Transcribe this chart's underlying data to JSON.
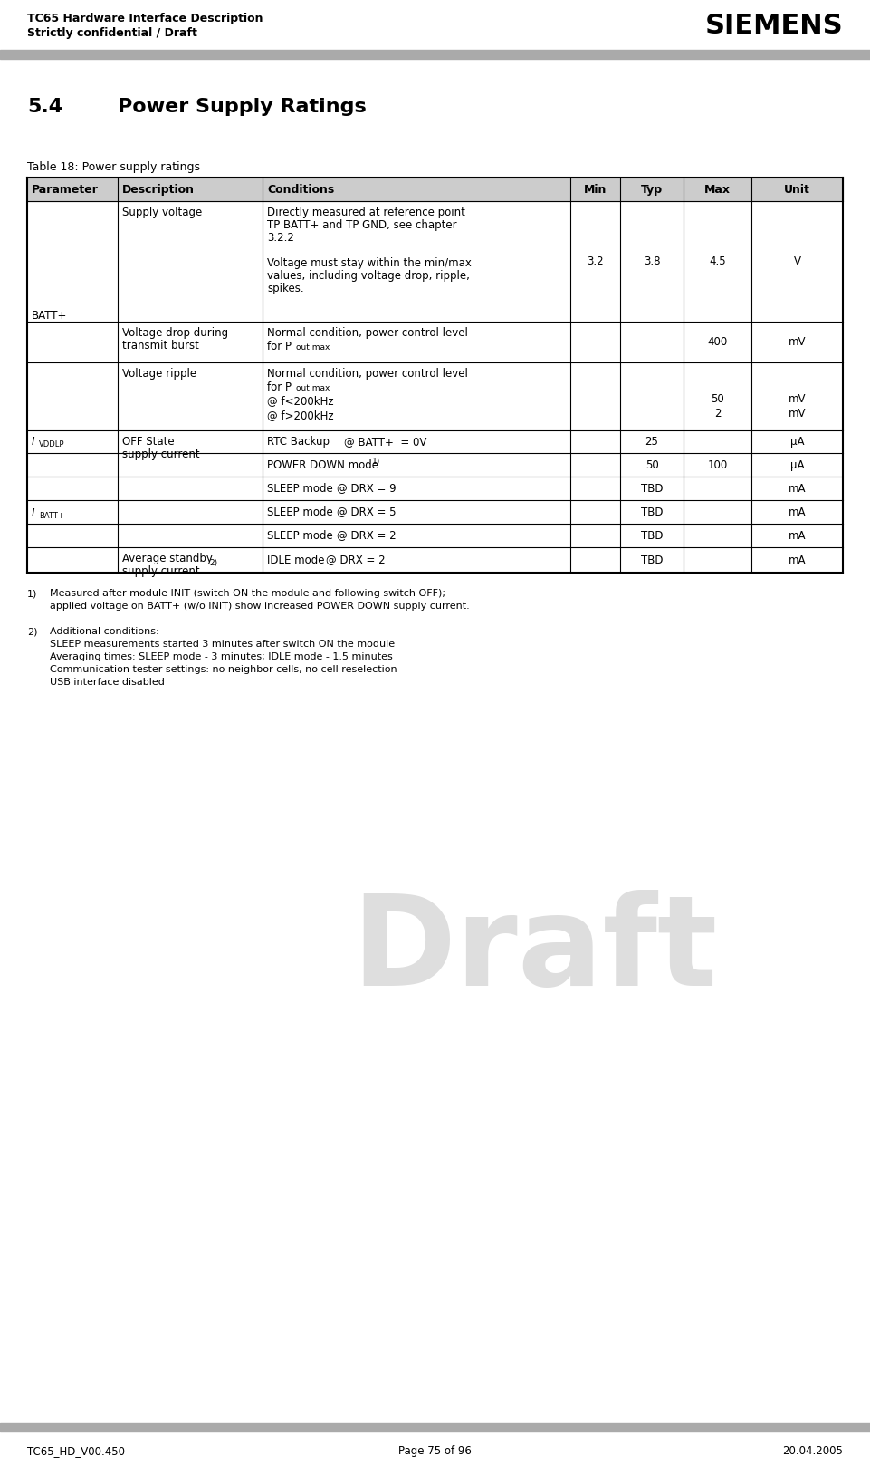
{
  "header_left_line1": "TC65 Hardware Interface Description",
  "header_left_line2": "Strictly confidential / Draft",
  "header_right": "SIEMENS",
  "footer_left": "TC65_HD_V00.450",
  "footer_center": "Page 75 of 96",
  "footer_right": "20.04.2005",
  "section_num": "5.4",
  "section_title": "Power Supply Ratings",
  "table_caption": "Table 18: Power supply ratings",
  "col_headers": [
    "Parameter",
    "Description",
    "Conditions",
    "Min",
    "Typ",
    "Max",
    "Unit"
  ],
  "draft_text": "Draft",
  "draft_color": "#c8c8c8",
  "background_color": "#ffffff",
  "separator_color": "#aaaaaa",
  "table_header_bg": "#cccccc",
  "table_border_color": "#000000",
  "fn1_label": "1)",
  "fn1_text": "Measured after module INIT (switch ON the module and following switch OFF);\napplied voltage on BATT+ (w/o INIT) show increased POWER DOWN supply current.",
  "fn2_label": "2)",
  "fn2_text": "Additional conditions:\nSLEEP measurements started 3 minutes after switch ON the module\nAveraging times: SLEEP mode - 3 minutes; IDLE mode - 1.5 minutes\nCommunication tester settings: no neighbor cells, no cell reselection\nUSB interface disabled"
}
